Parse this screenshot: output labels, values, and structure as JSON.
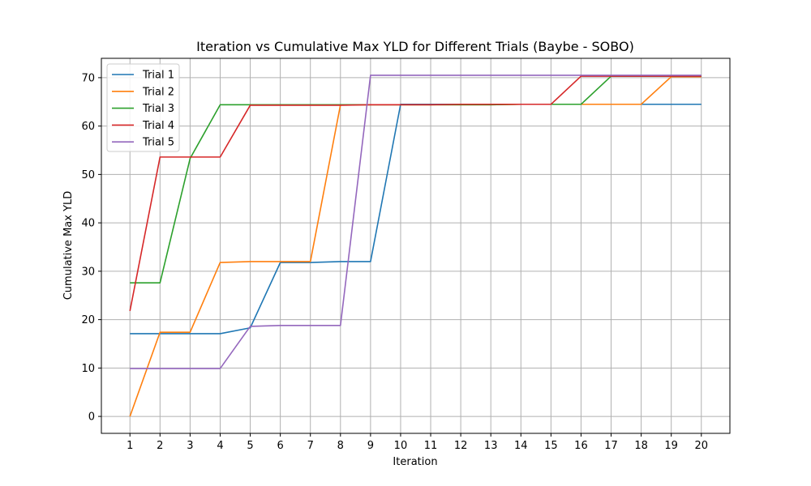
{
  "chart_data": {
    "type": "line",
    "title": "Iteration vs Cumulative Max YLD for Different Trials (Baybe - SOBO)",
    "xlabel": "Iteration",
    "ylabel": "Cumulative Max YLD",
    "x": [
      1,
      2,
      3,
      4,
      5,
      6,
      7,
      8,
      9,
      10,
      11,
      12,
      13,
      14,
      15,
      16,
      17,
      18,
      19,
      20
    ],
    "xlim": [
      0.05,
      20.95
    ],
    "ylim": [
      -3.5,
      74
    ],
    "xticks": [
      1,
      2,
      3,
      4,
      5,
      6,
      7,
      8,
      9,
      10,
      11,
      12,
      13,
      14,
      15,
      16,
      17,
      18,
      19,
      20
    ],
    "yticks": [
      0,
      10,
      20,
      30,
      40,
      50,
      60,
      70
    ],
    "grid": true,
    "legend_position": "top-left",
    "series": [
      {
        "name": "Trial 1",
        "color": "#1f77b4",
        "values": [
          17.1,
          17.1,
          17.1,
          17.1,
          18.3,
          31.8,
          31.8,
          32.0,
          32.0,
          64.5,
          64.5,
          64.5,
          64.5,
          64.5,
          64.5,
          64.5,
          64.5,
          64.5,
          64.5,
          64.5
        ]
      },
      {
        "name": "Trial 2",
        "color": "#ff7f0e",
        "values": [
          0.0,
          17.4,
          17.4,
          31.8,
          32.0,
          32.0,
          32.0,
          64.4,
          64.4,
          64.4,
          64.4,
          64.4,
          64.4,
          64.5,
          64.5,
          64.5,
          64.5,
          64.5,
          70.2,
          70.2
        ]
      },
      {
        "name": "Trial 3",
        "color": "#2ca02c",
        "values": [
          27.6,
          27.6,
          53.3,
          64.4,
          64.4,
          64.4,
          64.4,
          64.4,
          64.4,
          64.4,
          64.4,
          64.4,
          64.4,
          64.5,
          64.5,
          64.5,
          70.3,
          70.3,
          70.3,
          70.3
        ]
      },
      {
        "name": "Trial 4",
        "color": "#d62728",
        "values": [
          21.8,
          53.6,
          53.6,
          53.6,
          64.3,
          64.3,
          64.3,
          64.3,
          64.4,
          64.4,
          64.4,
          64.5,
          64.5,
          64.5,
          64.5,
          70.3,
          70.3,
          70.3,
          70.3,
          70.3
        ]
      },
      {
        "name": "Trial 5",
        "color": "#9467bd",
        "values": [
          9.9,
          9.9,
          9.9,
          9.9,
          18.6,
          18.8,
          18.8,
          18.8,
          70.5,
          70.5,
          70.5,
          70.5,
          70.5,
          70.5,
          70.5,
          70.5,
          70.5,
          70.5,
          70.5,
          70.5
        ]
      }
    ]
  }
}
